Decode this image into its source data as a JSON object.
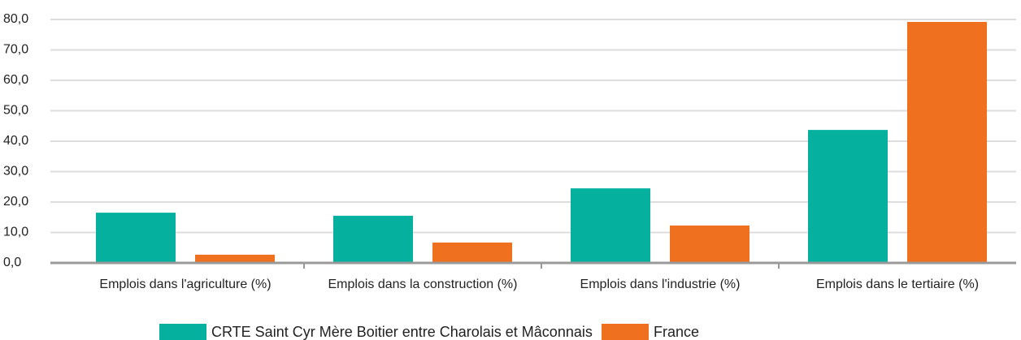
{
  "chart_data": {
    "type": "bar",
    "categories": [
      "Emplois dans l'agriculture (%)",
      "Emplois dans la construction (%)",
      "Emplois dans l'industrie (%)",
      "Emplois dans le tertiaire (%)"
    ],
    "series": [
      {
        "name": "CRTE Saint Cyr Mère Boitier entre Charolais et Mâconnais",
        "color": "#05b09f",
        "values": [
          16.5,
          15.5,
          24.5,
          43.7
        ]
      },
      {
        "name": "France",
        "color": "#ef711f",
        "values": [
          2.7,
          6.7,
          12.3,
          79.2
        ]
      }
    ],
    "ylim": [
      0,
      80
    ],
    "yticks": [
      {
        "value": 0,
        "label": "0,0"
      },
      {
        "value": 10,
        "label": "10,0"
      },
      {
        "value": 20,
        "label": "20,0"
      },
      {
        "value": 30,
        "label": "30,0"
      },
      {
        "value": 40,
        "label": "40,0"
      },
      {
        "value": 50,
        "label": "50,0"
      },
      {
        "value": 60,
        "label": "60,0"
      },
      {
        "value": 70,
        "label": "70,0"
      },
      {
        "value": 80,
        "label": "80,0"
      }
    ],
    "grid": true
  }
}
